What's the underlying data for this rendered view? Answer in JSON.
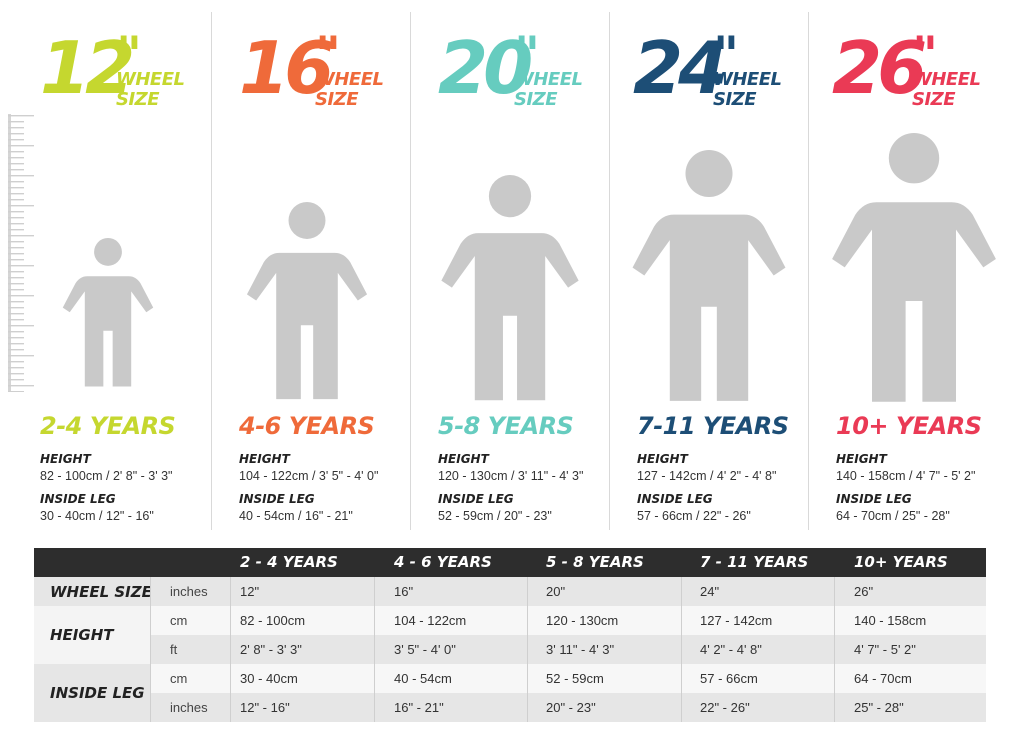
{
  "colors": {
    "c12": "#c5d72f",
    "c16": "#ef6a3a",
    "c20": "#66ccbf",
    "c24": "#1d4e76",
    "c26": "#ea3a55",
    "figure": "#c9c9c9",
    "table_header": "#2d2d2d"
  },
  "columns": [
    {
      "number": "12",
      "quote": "\"",
      "wheel": "WHEEL",
      "size": "SIZE",
      "years": "2-4 YEARS",
      "height_label": "HEIGHT",
      "height": "82 - 100cm / 2' 8\" - 3' 3\"",
      "leg_label": "INSIDE LEG",
      "leg": "30 - 40cm / 12\" - 16\""
    },
    {
      "number": "16",
      "quote": "\"",
      "wheel": "WHEEL",
      "size": "SIZE",
      "years": "4-6 YEARS",
      "height_label": "HEIGHT",
      "height": "104 - 122cm / 3' 5\" - 4' 0\"",
      "leg_label": "INSIDE LEG",
      "leg": "40 - 54cm / 16\" - 21\""
    },
    {
      "number": "20",
      "quote": "\"",
      "wheel": "WHEEL",
      "size": "SIZE",
      "years": "5-8 YEARS",
      "height_label": "HEIGHT",
      "height": "120 - 130cm / 3' 11\" - 4' 3\"",
      "leg_label": "INSIDE LEG",
      "leg": "52 - 59cm / 20\" - 23\""
    },
    {
      "number": "24",
      "quote": "\"",
      "wheel": "WHEEL",
      "size": "SIZE",
      "years": "7-11 YEARS",
      "height_label": "HEIGHT",
      "height": "127 - 142cm / 4' 2\" - 4' 8\"",
      "leg_label": "INSIDE LEG",
      "leg": "57 - 66cm / 22\" - 26\""
    },
    {
      "number": "26",
      "quote": "\"",
      "wheel": "WHEEL",
      "size": "SIZE",
      "years": "10+ YEARS",
      "height_label": "HEIGHT",
      "height": "140 - 158cm / 4' 7\" - 5' 2\"",
      "leg_label": "INSIDE LEG",
      "leg": "64 - 70cm / 25\" - 28\""
    }
  ],
  "table": {
    "headers": [
      "2 - 4 YEARS",
      "4 - 6 YEARS",
      "5 - 8 YEARS",
      "7 - 11 YEARS",
      "10+ YEARS"
    ],
    "row_groups": {
      "wheel_size": "WHEEL SIZE",
      "height": "HEIGHT",
      "inside_leg": "INSIDE LEG"
    },
    "rows": [
      {
        "unit": "inches",
        "values": [
          "12\"",
          "16\"",
          "20\"",
          "24\"",
          "26\""
        ]
      },
      {
        "unit": "cm",
        "values": [
          "82 - 100cm",
          "104 - 122cm",
          "120 - 130cm",
          "127 - 142cm",
          "140 - 158cm"
        ]
      },
      {
        "unit": "ft",
        "values": [
          "2' 8\" - 3' 3\"",
          "3' 5\" - 4' 0\"",
          "3' 11\" - 4' 3\"",
          "4' 2\" - 4' 8\"",
          "4' 7\" - 5' 2\""
        ]
      },
      {
        "unit": "cm",
        "values": [
          "30 - 40cm",
          "40 - 54cm",
          "52 - 59cm",
          "57 - 66cm",
          "64 - 70cm"
        ]
      },
      {
        "unit": "inches",
        "values": [
          "12\" - 16\"",
          "16\" - 21\"",
          "20\" - 23\"",
          "22\" - 26\"",
          "25\" - 28\""
        ]
      }
    ]
  }
}
